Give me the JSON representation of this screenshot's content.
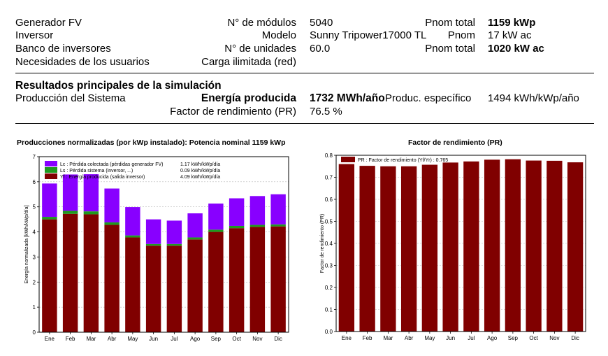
{
  "system": {
    "rows": [
      {
        "label": "Generador FV",
        "key": "N° de módulos",
        "val": "5040",
        "key2": "Pnom total",
        "val2": "1159 kWp",
        "val2_bold": true
      },
      {
        "label": "Inversor",
        "key": "Modelo",
        "val": "Sunny Tripower17000 TL",
        "key2": "Pnom",
        "val2": "17 kW ac",
        "val2_bold": false
      },
      {
        "label": "Banco de inversores",
        "key": "N° de unidades",
        "val": "60.0",
        "key2": "Pnom total",
        "val2": "1020 kW ac",
        "val2_bold": true
      },
      {
        "label": "Necesidades de los usuarios",
        "key": "Carga ilimitada (red)",
        "val": "",
        "key2": "",
        "val2": "",
        "val2_bold": false
      }
    ]
  },
  "results": {
    "title": "Resultados principales de la simulación",
    "production_label": "Producción del Sistema",
    "energy_label": "Energía producida",
    "energy_value": "1732 MWh/año",
    "specific_label": "Produc. específico",
    "specific_value": "1494 kWh/kWp/año",
    "pr_label": "Factor de rendimiento (PR)",
    "pr_value": "76.5 %"
  },
  "chart_data": [
    {
      "type": "bar",
      "stacked": true,
      "title": "Producciones normalizadas (por kWp instalado):  Potencia nominal 1159 kWp",
      "ylabel": "Energía normalizada [kWh/kWp/día]",
      "ylim": [
        0,
        7
      ],
      "yticks": [
        "0",
        "1",
        "2",
        "3",
        "4",
        "5",
        "6",
        "7"
      ],
      "categories": [
        "Ene",
        "Feb",
        "Mar",
        "Abr",
        "May",
        "Jun",
        "Jul",
        "Ago",
        "Sep",
        "Oct",
        "Nov",
        "Dic"
      ],
      "series": [
        {
          "name": "Yf : Energía producida  (salida inversor)",
          "legend_value": "4.09 kWh/kWp/día",
          "color": "#800000",
          "values": [
            4.5,
            4.72,
            4.7,
            4.28,
            3.78,
            3.45,
            3.45,
            3.7,
            4.0,
            4.15,
            4.2,
            4.22
          ]
        },
        {
          "name": "Ls : Pérdida sistema  (inversor, ...)",
          "legend_value": "0.09 kWh/kWp/día",
          "color": "#1f9a1f",
          "values": [
            0.1,
            0.12,
            0.12,
            0.1,
            0.08,
            0.07,
            0.07,
            0.08,
            0.09,
            0.09,
            0.08,
            0.08
          ]
        },
        {
          "name": "Lc : Pérdida colectada (pérdidas generador FV)",
          "legend_value": "1.17 kWh/kWp/día",
          "color": "#8800ff",
          "values": [
            1.33,
            1.45,
            1.48,
            1.35,
            1.13,
            0.98,
            0.93,
            0.96,
            1.04,
            1.1,
            1.15,
            1.2
          ]
        }
      ],
      "legend_placement": "top-left"
    },
    {
      "type": "bar",
      "title": "Factor de rendimiento (PR)",
      "ylabel": "Factor de rendimiento (PR)",
      "ylim": [
        0,
        0.8
      ],
      "yticks": [
        "0.0",
        "0.1",
        "0.2",
        "0.3",
        "0.4",
        "0.5",
        "0.6",
        "0.7",
        "0.8"
      ],
      "categories": [
        "Ene",
        "Feb",
        "Mar",
        "Abr",
        "May",
        "Jun",
        "Jul",
        "Ago",
        "Sep",
        "Oct",
        "Nov",
        "Dic"
      ],
      "series": [
        {
          "name": "PR : Factor de rendimiento (Yf/Yr) :  0.765",
          "color": "#800000",
          "values": [
            0.76,
            0.752,
            0.75,
            0.75,
            0.757,
            0.767,
            0.772,
            0.78,
            0.782,
            0.776,
            0.775,
            0.768
          ]
        }
      ],
      "legend_placement": "top-left"
    }
  ]
}
